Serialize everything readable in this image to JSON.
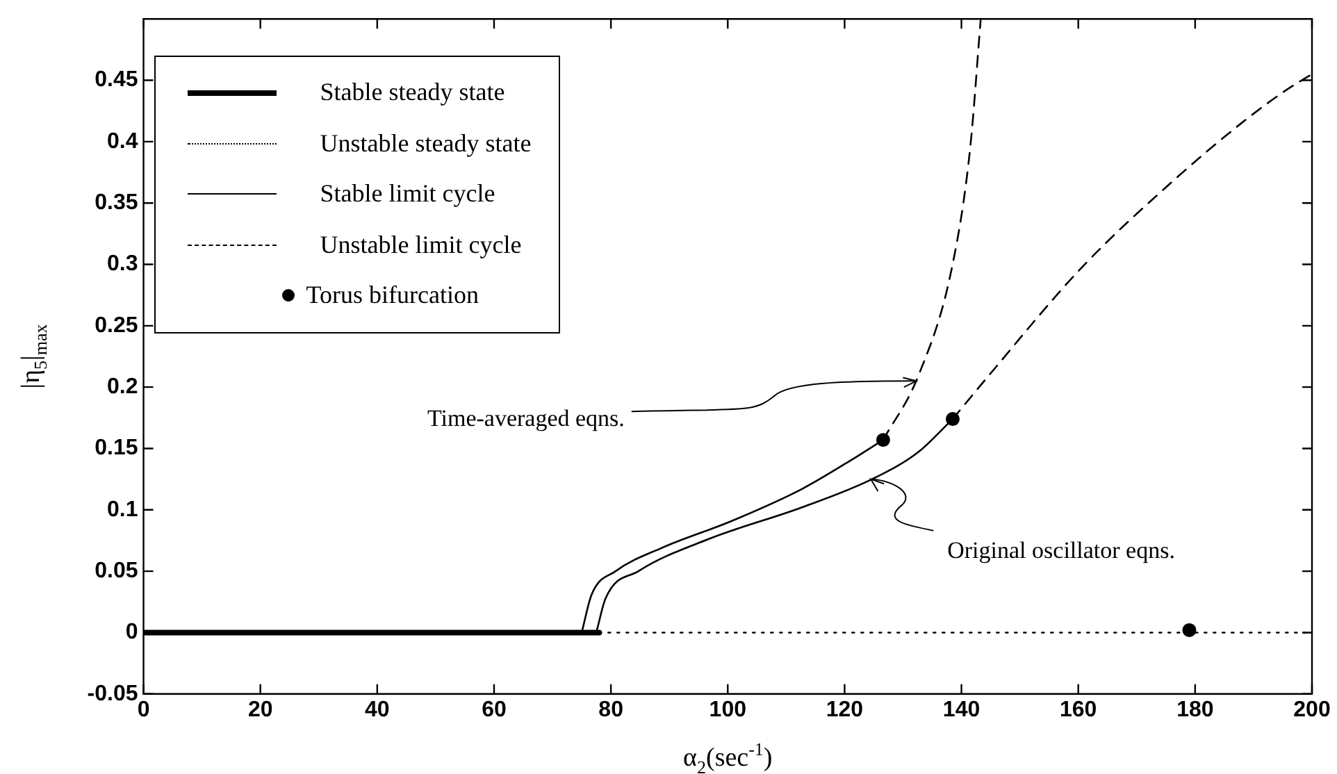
{
  "chart_data": {
    "type": "line",
    "xlabel": "α$_{2}$(sec$^{-1}$)",
    "ylabel": "|η$_{5}$|$_{max}$",
    "xlim": [
      0,
      200
    ],
    "ylim": [
      -0.05,
      0.5
    ],
    "xticks": [
      0,
      20,
      40,
      60,
      80,
      100,
      120,
      140,
      160,
      180,
      200
    ],
    "yticks": [
      -0.05,
      0,
      0.05,
      0.1,
      0.15,
      0.2,
      0.25,
      0.3,
      0.35,
      0.4,
      0.45
    ],
    "grid": false,
    "legend": "top left",
    "series": [
      {
        "name": "Stable steady state",
        "line_style": "solid",
        "marker": "none",
        "color": "#000000",
        "x": [
          0,
          78
        ],
        "values": [
          0,
          0
        ]
      },
      {
        "name": "Unstable steady state",
        "line_style": "dotted",
        "marker": "none",
        "color": "#000000",
        "x": [
          78,
          200
        ],
        "values": [
          0,
          0
        ]
      },
      {
        "name": "Stable limit cycle",
        "line_style": "solid",
        "marker": "none",
        "color": "#000000",
        "x": [
          75,
          76.7,
          80.8,
          88.7,
          100.7,
          112.7,
          120.6,
          126.6,
          null,
          77.5,
          79.1,
          84.7,
          96.6,
          112.7,
          124.7,
          132.6,
          138.5
        ],
        "values": [
          0,
          0.031,
          0.05,
          0.069,
          0.091,
          0.117,
          0.139,
          0.157,
          null,
          0,
          0.028,
          0.05,
          0.076,
          0.102,
          0.125,
          0.147,
          0.174
        ]
      },
      {
        "name": "Unstable limit cycle",
        "line_style": "dashed",
        "marker": "none",
        "color": "#000000",
        "x": [
          126.6,
          132.6,
          138.4,
          141.5,
          143.3,
          null,
          138.5,
          144.6,
          160.7,
          176.7,
          188.7,
          195.9,
          200
        ],
        "values": [
          0.157,
          0.209,
          0.298,
          0.395,
          0.5,
          null,
          0.174,
          0.209,
          0.298,
          0.37,
          0.418,
          0.443,
          0.455
        ]
      },
      {
        "name": "Torus bifurcation",
        "type": "scatter",
        "marker": "circle",
        "color": "#000000",
        "x": [
          126.6,
          138.5,
          179
        ],
        "values": [
          0.157,
          0.174,
          0.002
        ]
      }
    ],
    "annotations": [
      {
        "text": "Time-averaged eqns.",
        "x": 132.3,
        "y": 0.205
      },
      {
        "text": "Original oscillator eqns.",
        "x": 124.5,
        "y": 0.125
      }
    ]
  }
}
